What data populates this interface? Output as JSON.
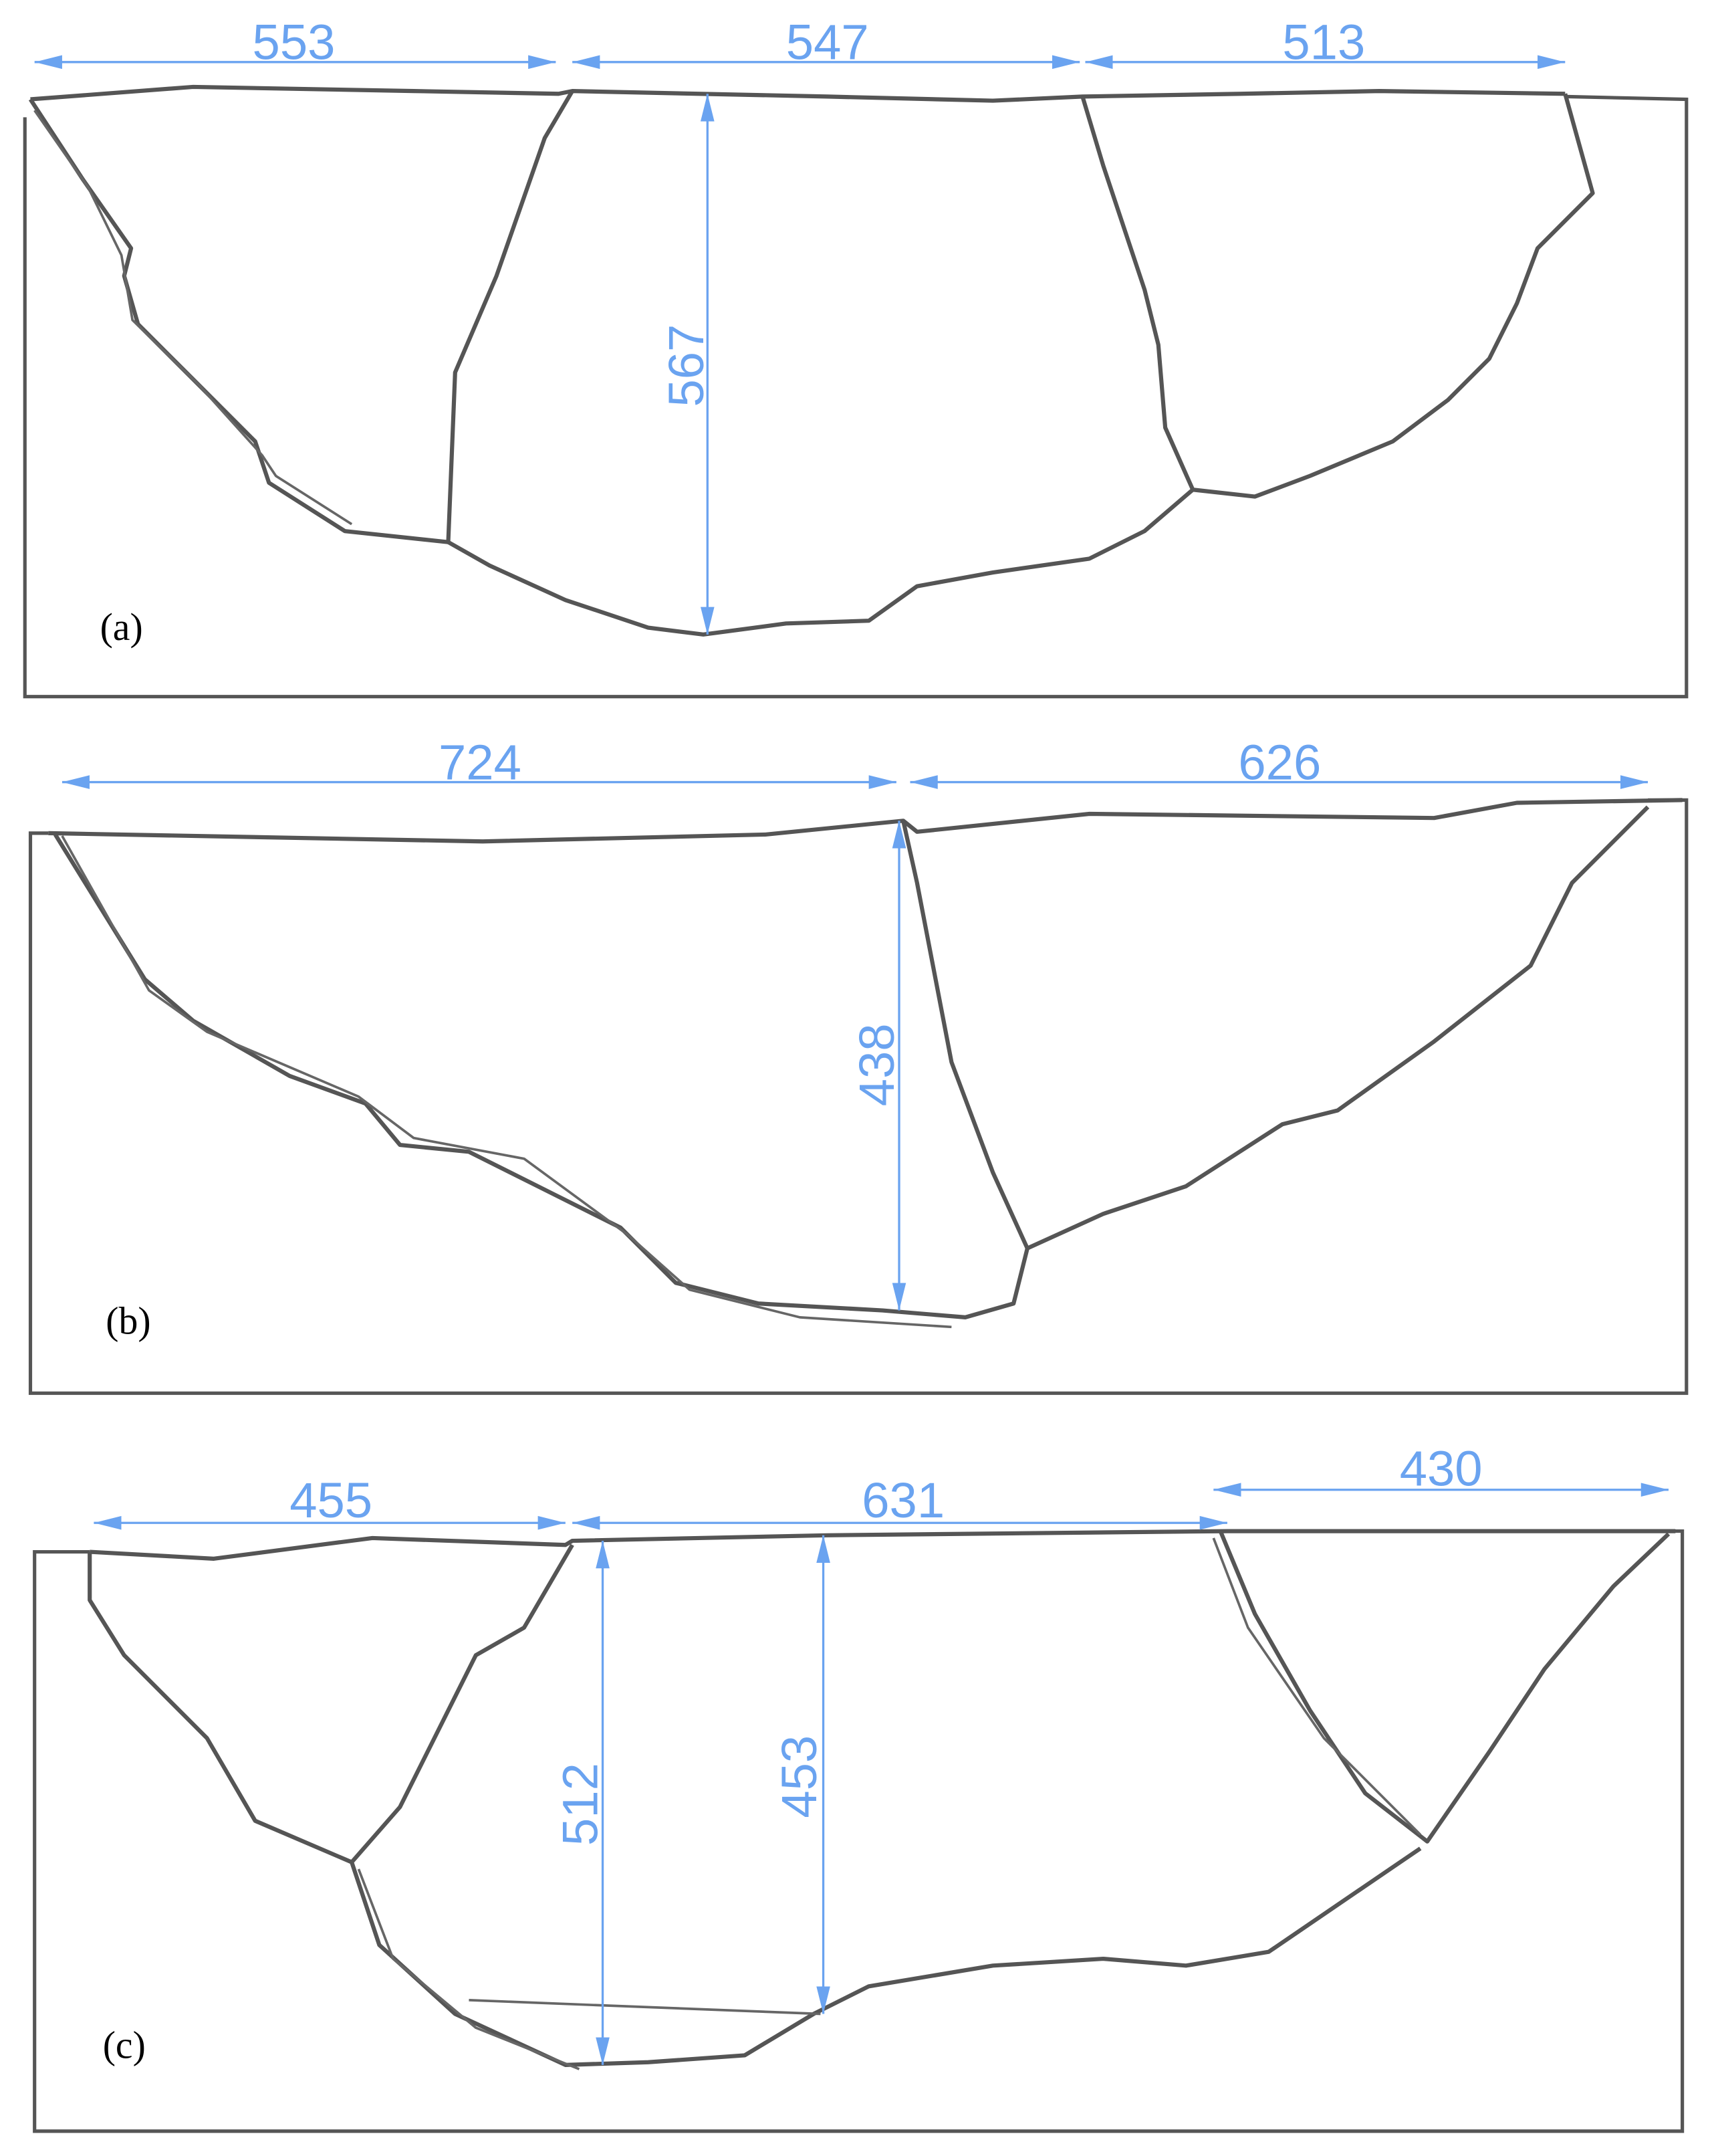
{
  "colors": {
    "outline": "#555555",
    "dimension": "#6aa3f0"
  },
  "panels": [
    {
      "label": "(a)",
      "widths": [
        "553",
        "547",
        "513"
      ],
      "depths": [
        "567"
      ]
    },
    {
      "label": "(b)",
      "widths": [
        "724",
        "626"
      ],
      "depths": [
        "438"
      ]
    },
    {
      "label": "(c)",
      "widths": [
        "455",
        "631",
        "430"
      ],
      "depths": [
        "512",
        "453"
      ]
    }
  ]
}
